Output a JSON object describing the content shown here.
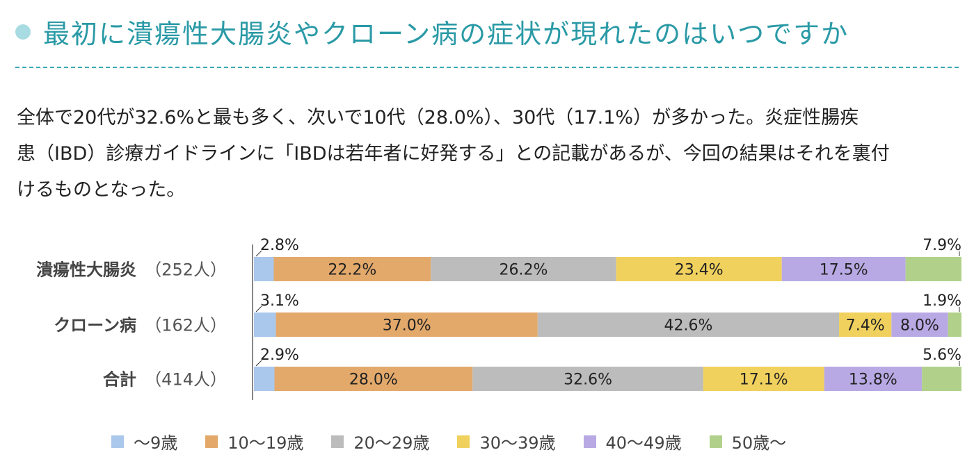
{
  "header": {
    "title": "最初に潰瘍性大腸炎やクローン病の症状が現れたのはいつですか"
  },
  "description": {
    "line1": "全体で20代が32.6%と最も多く、次いで10代（28.0%）、30代（17.1%）が多かった。炎症性腸疾",
    "line2": "患（IBD）診療ガイドラインに「IBDは若年者に好発する」との記載があるが、今回の結果はそれを裏付",
    "line3": "けるものとなった。"
  },
  "chart_data": {
    "type": "bar",
    "stacked": true,
    "orientation": "horizontal",
    "unit": "%",
    "categories": [
      {
        "label": "潰瘍性大腸炎",
        "count": "（252人）"
      },
      {
        "label": "クローン病",
        "count": "（162人）"
      },
      {
        "label": "合計",
        "count": "（414人）"
      }
    ],
    "series": [
      {
        "name": "～9歳",
        "color": "#aac8ec",
        "values": [
          2.8,
          3.1,
          2.9
        ],
        "labels": [
          "2.8%",
          "3.1%",
          "2.9%"
        ]
      },
      {
        "name": "10～19歳",
        "color": "#e3a96b",
        "values": [
          22.2,
          37.0,
          28.0
        ],
        "labels": [
          "22.2%",
          "37.0%",
          "28.0%"
        ]
      },
      {
        "name": "20～29歳",
        "color": "#bcbcbc",
        "values": [
          26.2,
          42.6,
          32.6
        ],
        "labels": [
          "26.2%",
          "42.6%",
          "32.6%"
        ]
      },
      {
        "name": "30～39歳",
        "color": "#f0d15e",
        "values": [
          23.4,
          7.4,
          17.1
        ],
        "labels": [
          "23.4%",
          "7.4%",
          "17.1%"
        ]
      },
      {
        "name": "40～49歳",
        "color": "#b8a9e4",
        "values": [
          17.5,
          8.0,
          13.8
        ],
        "labels": [
          "17.5%",
          "8.0%",
          "13.8%"
        ]
      },
      {
        "name": "50歳～",
        "color": "#b1d18a",
        "values": [
          7.9,
          1.9,
          5.6
        ],
        "labels": [
          "7.9%",
          "1.9%",
          "5.6%"
        ]
      }
    ],
    "xlim": [
      0,
      100
    ],
    "legend_position": "bottom",
    "grid": false
  }
}
